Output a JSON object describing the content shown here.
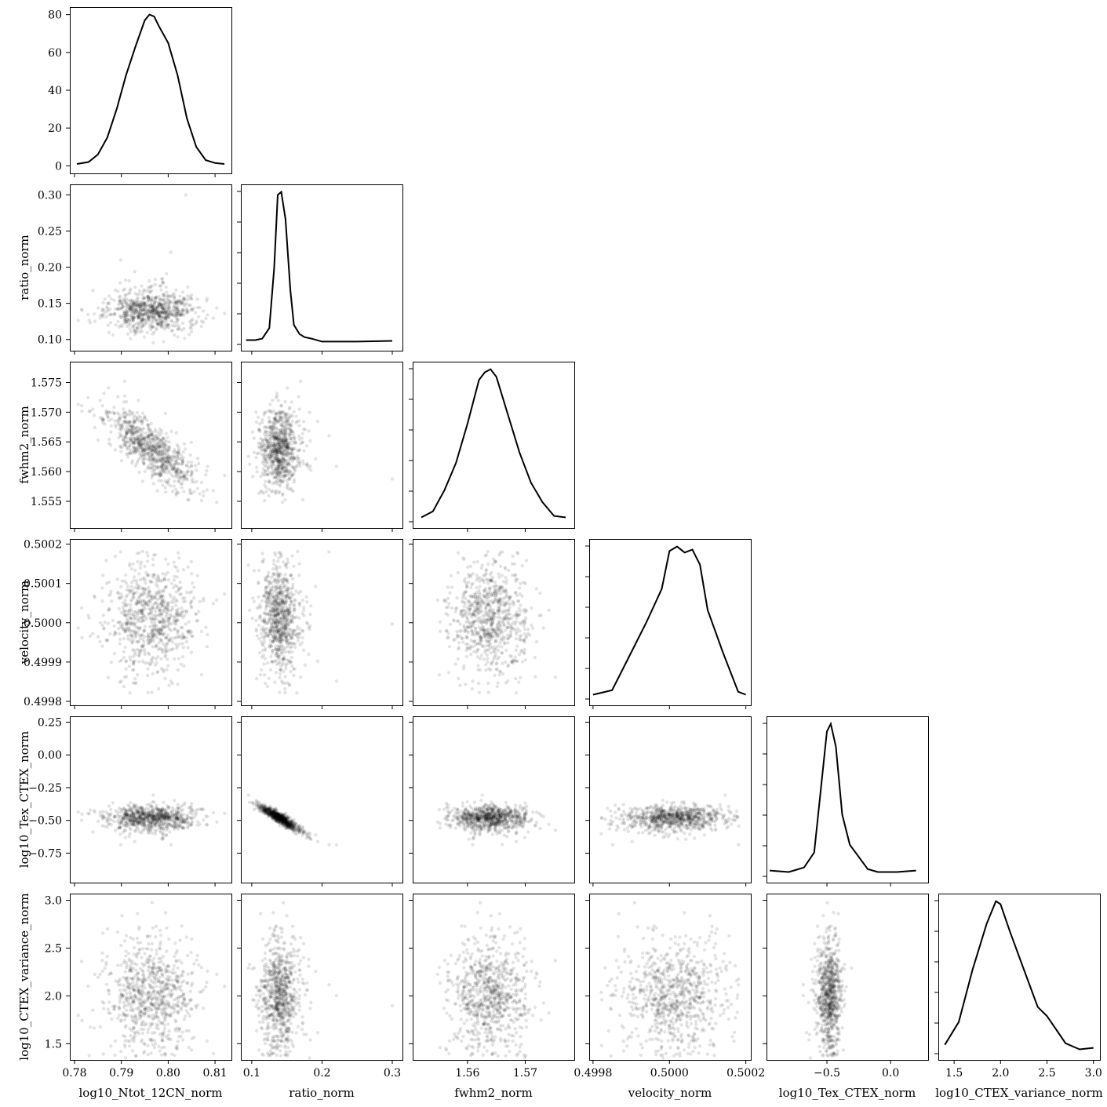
{
  "chart_data": {
    "type": "scatter",
    "title": "",
    "variables": [
      {
        "name": "log10_Ntot_12CN_norm",
        "label": "log10_Ntot_12CN_norm",
        "range": [
          0.779,
          0.8135
        ],
        "ticks": [
          0.78,
          0.79,
          0.8,
          0.81
        ],
        "tick_labels": [
          "0.78",
          "0.79",
          "0.80",
          "0.81"
        ],
        "mean": 0.7965,
        "sd": 0.005
      },
      {
        "name": "ratio_norm",
        "label": "ratio_norm",
        "range": [
          0.0845,
          0.3145
        ],
        "ticks": [
          0.1,
          0.15,
          0.2,
          0.25,
          0.3
        ],
        "tick_labels": [
          "0.10",
          "0.15",
          "0.20",
          "0.25",
          "0.30"
        ],
        "bottom_ticks": [
          0.1,
          0.2,
          0.3
        ],
        "bottom_tick_labels": [
          "0.1",
          "0.2",
          "0.3"
        ],
        "mean": 0.139,
        "sd": 0.014
      },
      {
        "name": "fwhm2_norm",
        "label": "fwhm2_norm",
        "range": [
          1.5505,
          1.5785
        ],
        "ticks": [
          1.555,
          1.56,
          1.565,
          1.57,
          1.575
        ],
        "tick_labels": [
          "1.555",
          "1.560",
          "1.565",
          "1.570",
          "1.575"
        ],
        "bottom_ticks": [
          1.56,
          1.57
        ],
        "bottom_tick_labels": [
          "1.56",
          "1.57"
        ],
        "mean": 1.5638,
        "sd": 0.0035
      },
      {
        "name": "velocity_norm",
        "label": "velocity_norm",
        "range": [
          0.49979,
          0.500213
        ],
        "ticks": [
          0.4998,
          0.4999,
          0.5,
          0.5001,
          0.5002
        ],
        "tick_labels": [
          "0.4998",
          "0.4999",
          "0.5000",
          "0.5001",
          "0.5002"
        ],
        "bottom_ticks": [
          0.4998,
          0.5,
          0.5002
        ],
        "bottom_tick_labels": [
          "0.4998",
          "0.5000",
          "0.5002"
        ],
        "mean": 0.50001,
        "sd": 7e-05
      },
      {
        "name": "log10_Tex_CTEX_norm",
        "label": "log10_Tex_CTEX_norm",
        "range": [
          -0.975,
          0.295
        ],
        "ticks": [
          -0.75,
          -0.5,
          -0.25,
          0.0,
          0.25
        ],
        "tick_labels": [
          "−0.75",
          "−0.50",
          "−0.25",
          "0.00",
          "0.25"
        ],
        "bottom_ticks": [
          -0.5,
          0.0
        ],
        "bottom_tick_labels": [
          "−0.5",
          "0.0"
        ],
        "mean": -0.48,
        "sd": 0.07
      },
      {
        "name": "log10_CTEX_variance_norm",
        "label": "log10_CTEX_variance_norm",
        "range": [
          1.33,
          3.07
        ],
        "ticks": [
          1.5,
          2.0,
          2.5,
          3.0
        ],
        "tick_labels": [
          "1.5",
          "2.0",
          "2.5",
          "3.0"
        ],
        "bottom_ticks": [
          1.5,
          2.0,
          2.5,
          3.0
        ],
        "bottom_tick_labels": [
          "1.5",
          "2.0",
          "2.5",
          "3.0"
        ],
        "mean": 2.0,
        "sd": 0.3
      }
    ],
    "density_yaxis": {
      "ylim": [
        -4,
        84
      ],
      "ticks": [
        0,
        20,
        40,
        60,
        80
      ],
      "tick_labels": [
        "0",
        "20",
        "40",
        "60",
        "80"
      ]
    },
    "diagonal_kde": [
      {
        "variable": "log10_Ntot_12CN_norm",
        "x": [
          0.7805,
          0.783,
          0.785,
          0.787,
          0.789,
          0.791,
          0.793,
          0.795,
          0.796,
          0.797,
          0.798,
          0.8,
          0.802,
          0.804,
          0.806,
          0.808,
          0.81,
          0.812
        ],
        "y": [
          1,
          2,
          6,
          15,
          30,
          48,
          63,
          77,
          80,
          79,
          74,
          65,
          48,
          25,
          10,
          3,
          1.5,
          1
        ],
        "ylim": [
          -4,
          84
        ]
      },
      {
        "variable": "ratio_norm",
        "x": [
          0.092,
          0.105,
          0.115,
          0.125,
          0.132,
          0.137,
          0.142,
          0.148,
          0.155,
          0.16,
          0.168,
          0.175,
          0.185,
          0.2,
          0.25,
          0.3
        ],
        "y": [
          0.02,
          0.02,
          0.03,
          0.1,
          0.5,
          0.98,
          1.0,
          0.82,
          0.35,
          0.12,
          0.06,
          0.04,
          0.03,
          0.01,
          0.01,
          0.015
        ],
        "ylim": [
          -0.05,
          1.05
        ]
      },
      {
        "variable": "fwhm2_norm",
        "x": [
          1.552,
          1.554,
          1.556,
          1.558,
          1.56,
          1.562,
          1.563,
          1.564,
          1.565,
          1.567,
          1.569,
          1.571,
          1.573,
          1.575,
          1.577
        ],
        "y": [
          0.02,
          0.06,
          0.2,
          0.38,
          0.64,
          0.93,
          0.98,
          1.0,
          0.95,
          0.7,
          0.45,
          0.25,
          0.12,
          0.03,
          0.02
        ],
        "ylim": [
          -0.05,
          1.05
        ]
      },
      {
        "variable": "velocity_norm",
        "x": [
          0.4998,
          0.49985,
          0.4999,
          0.49994,
          0.49998,
          0.5,
          0.50002,
          0.50004,
          0.50006,
          0.50008,
          0.5001,
          0.50014,
          0.50018,
          0.5002
        ],
        "y": [
          0.02,
          0.05,
          0.3,
          0.5,
          0.72,
          0.97,
          1.0,
          0.96,
          0.98,
          0.88,
          0.58,
          0.3,
          0.04,
          0.02
        ],
        "ylim": [
          -0.05,
          1.05
        ]
      },
      {
        "variable": "log10_Tex_CTEX_norm",
        "x": [
          -0.95,
          -0.8,
          -0.68,
          -0.6,
          -0.55,
          -0.5,
          -0.47,
          -0.43,
          -0.38,
          -0.32,
          -0.25,
          -0.18,
          -0.1,
          0.05,
          0.2
        ],
        "y": [
          0.03,
          0.02,
          0.05,
          0.15,
          0.55,
          0.95,
          1.0,
          0.85,
          0.4,
          0.2,
          0.12,
          0.04,
          0.02,
          0.02,
          0.03
        ],
        "ylim": [
          -0.05,
          1.05
        ]
      },
      {
        "variable": "log10_CTEX_variance_norm",
        "x": [
          1.4,
          1.55,
          1.7,
          1.85,
          1.95,
          2.0,
          2.1,
          2.25,
          2.4,
          2.5,
          2.6,
          2.7,
          2.85,
          3.0
        ],
        "y": [
          0.05,
          0.2,
          0.55,
          0.85,
          1.0,
          0.98,
          0.8,
          0.55,
          0.3,
          0.24,
          0.15,
          0.06,
          0.02,
          0.03
        ],
        "ylim": [
          -0.05,
          1.05
        ]
      }
    ],
    "scatter_samples": 800,
    "correlations": [
      {
        "x": "log10_Ntot_12CN_norm",
        "y": "fwhm2_norm",
        "r": -0.75
      },
      {
        "x": "ratio_norm",
        "y": "log10_Tex_CTEX_norm",
        "r": -0.98
      }
    ],
    "point_color": "#000000",
    "point_alpha": 0.11,
    "line_color": "#000000",
    "grid": false
  }
}
